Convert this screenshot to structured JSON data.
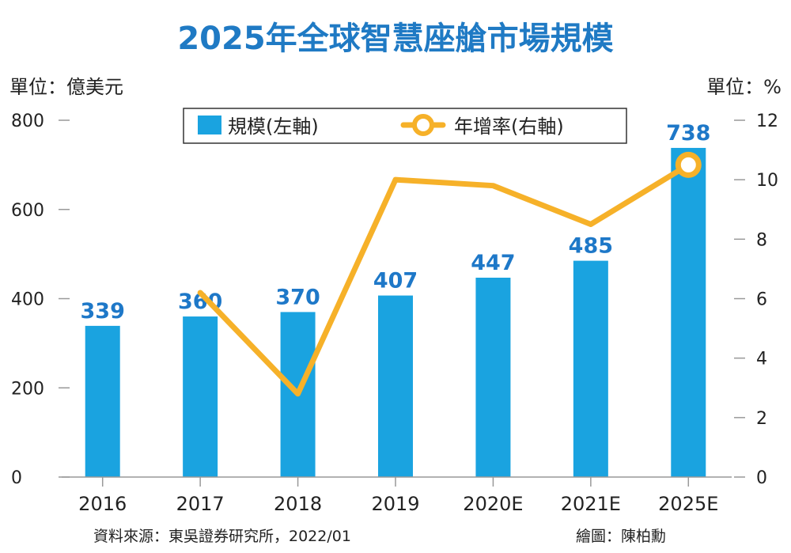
{
  "chart_data": {
    "type": "bar+line",
    "title": "2025年全球智慧座艙市場規模",
    "left_axis": {
      "unit_label": "單位：億美元",
      "ylim": [
        0,
        800
      ],
      "ticks": [
        0,
        200,
        400,
        600,
        800
      ]
    },
    "right_axis": {
      "unit_label": "單位：%",
      "ylim": [
        0,
        12
      ],
      "ticks": [
        0,
        2,
        4,
        6,
        8,
        10,
        12
      ]
    },
    "categories": [
      "2016",
      "2017",
      "2018",
      "2019",
      "2020E",
      "2021E",
      "2025E"
    ],
    "series": [
      {
        "name": "規模(左軸)",
        "type": "bar",
        "axis": "left",
        "values": [
          339,
          360,
          370,
          407,
          447,
          485,
          738
        ],
        "labels": [
          "339",
          "360",
          "370",
          "407",
          "447",
          "485",
          "738"
        ],
        "color": "#1aa3e0",
        "label_color": "#1e78c8"
      },
      {
        "name": "年增率(右軸)",
        "type": "line",
        "axis": "right",
        "values": [
          null,
          6.2,
          2.8,
          10.0,
          9.8,
          8.5,
          10.5
        ],
        "color": "#f6b129",
        "marker_on_last": true
      }
    ],
    "legend_position": "top-center",
    "grid": false
  },
  "footer": {
    "source": "資料來源：東吳證券研究所，2022/01",
    "credit": "繪圖：陳柏勳"
  },
  "colors": {
    "title": "#1f7ac4",
    "bar": "#1aa3e0",
    "line": "#f6b129",
    "axis": "#999999"
  }
}
